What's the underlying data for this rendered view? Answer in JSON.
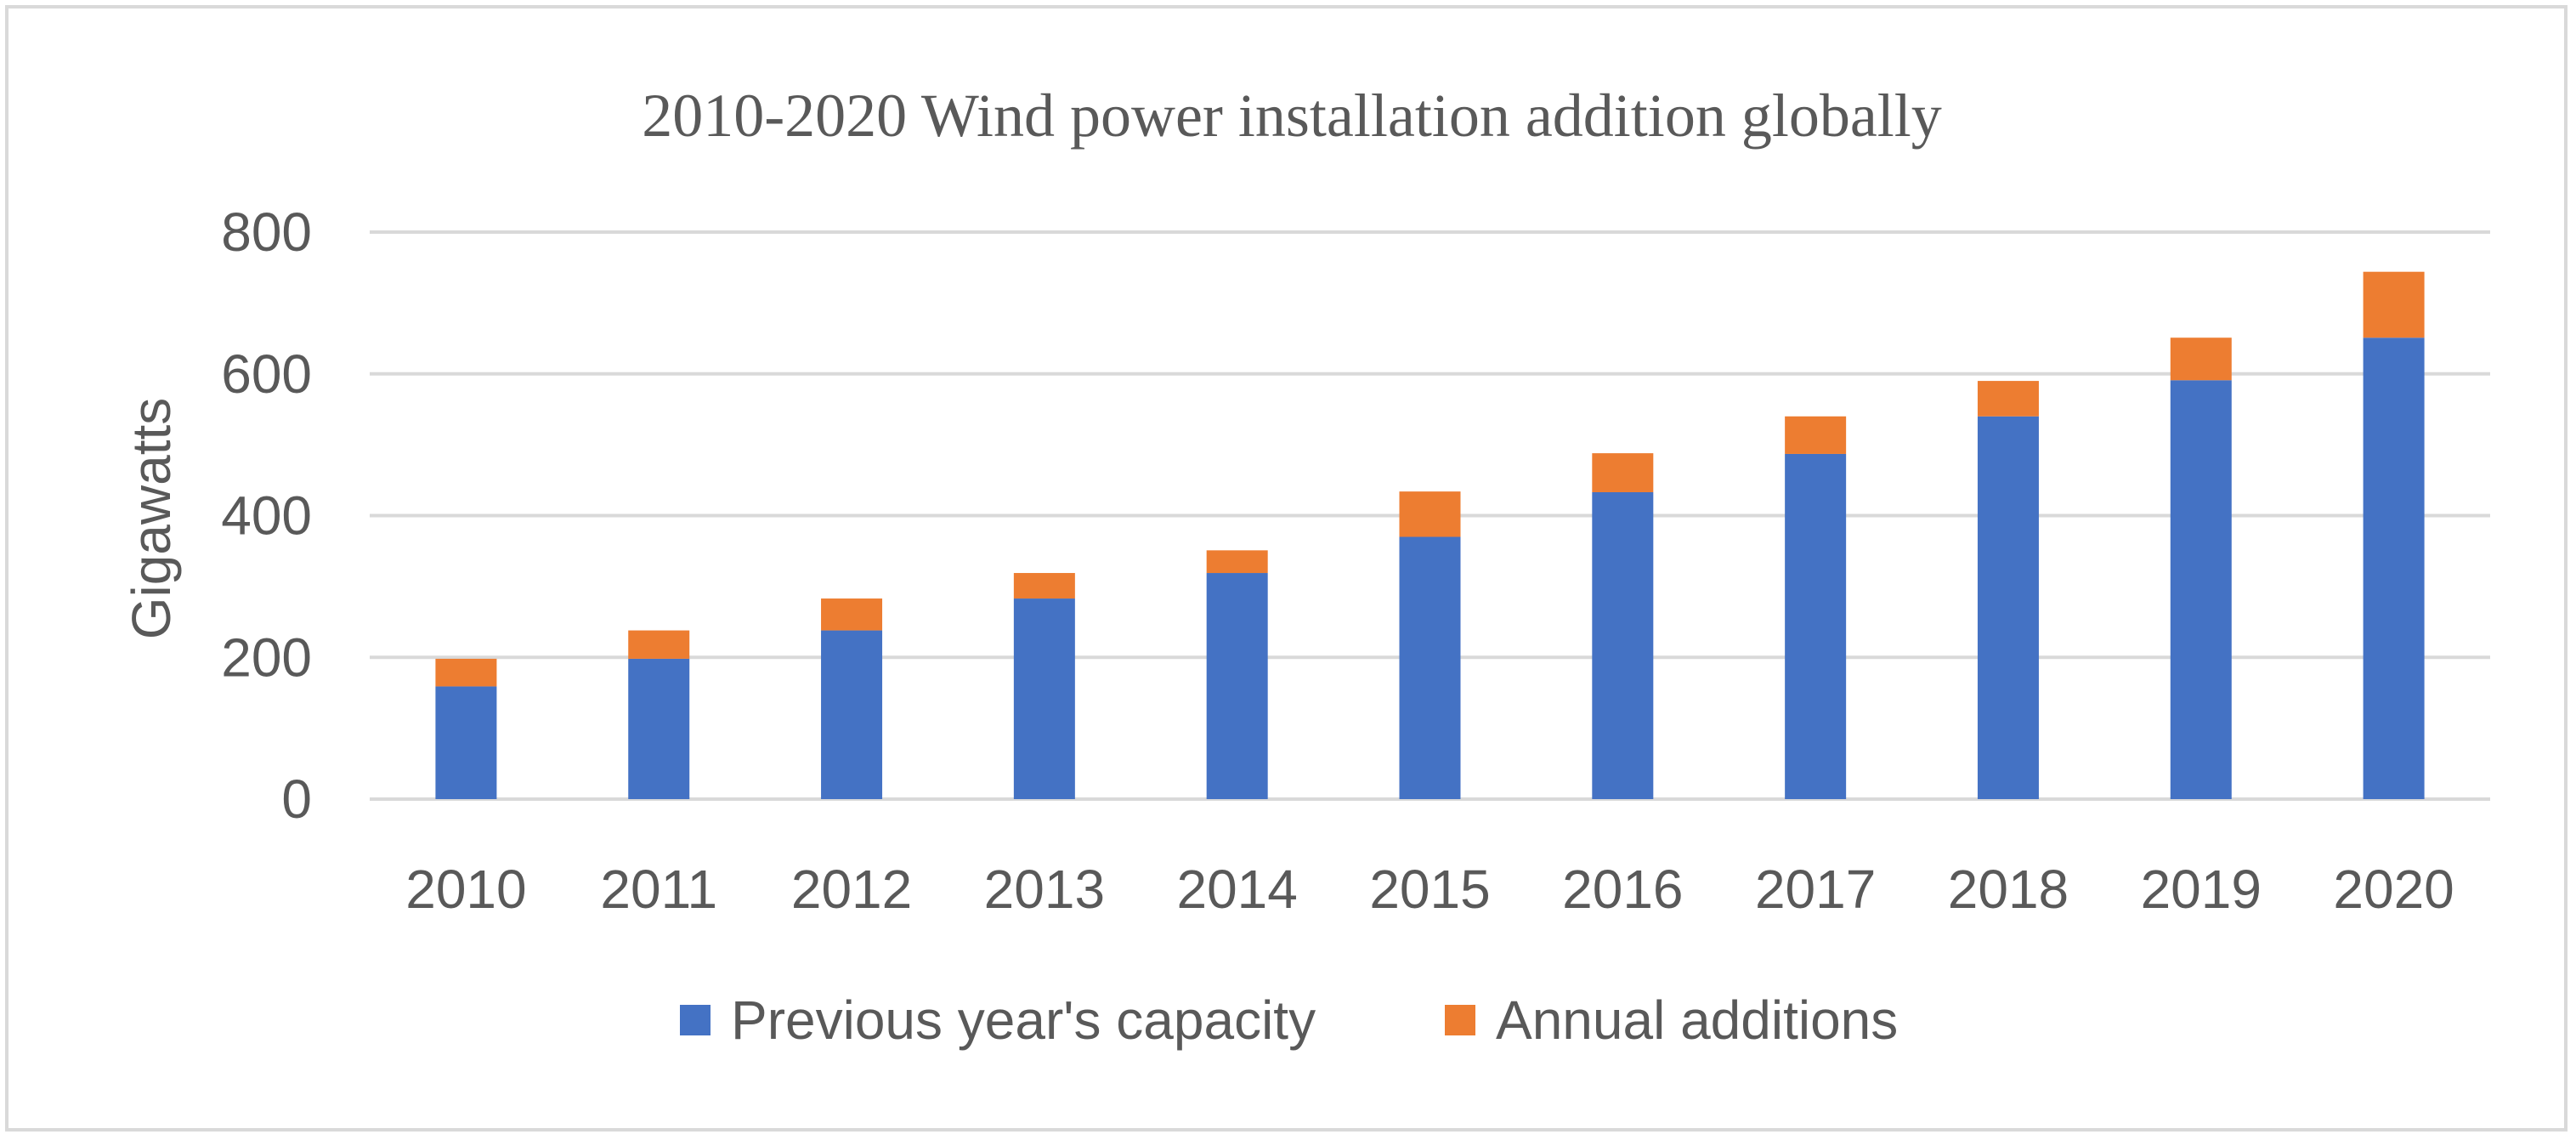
{
  "chart_data": {
    "type": "bar",
    "stacked": true,
    "title": "2010-2020 Wind power installation addition globally",
    "xlabel": "",
    "ylabel": "Gigawatts",
    "ylim": [
      0,
      800
    ],
    "yticks": [
      0,
      200,
      400,
      600,
      800
    ],
    "grid": true,
    "legend_position": "bottom",
    "categories": [
      "2010",
      "2011",
      "2012",
      "2013",
      "2014",
      "2015",
      "2016",
      "2017",
      "2018",
      "2019",
      "2020"
    ],
    "series": [
      {
        "name": "Previous year's capacity",
        "color": "#4472c4",
        "values": [
          159,
          198,
          238,
          283,
          319,
          370,
          433,
          487,
          540,
          591,
          651
        ]
      },
      {
        "name": "Annual additions",
        "color": "#ed7d31",
        "values": [
          39,
          40,
          45,
          36,
          32,
          64,
          55,
          53,
          50,
          60,
          93
        ]
      }
    ]
  },
  "style": {
    "grid_color": "#d9d9d9",
    "text_color": "#595959"
  }
}
